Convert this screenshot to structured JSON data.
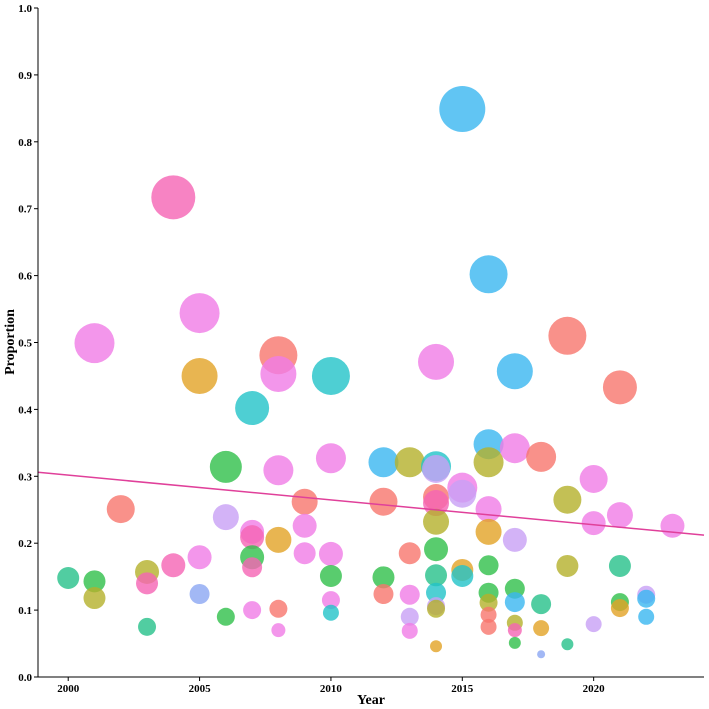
{
  "chart_data": {
    "type": "scatter",
    "x_label": "Year",
    "y_label": "Proportion",
    "xlim": [
      1998.85,
      2024.2
    ],
    "ylim": [
      0,
      1
    ],
    "xticks": [
      2000,
      2005,
      2010,
      2015,
      2020
    ],
    "yticks": [
      {
        "value": 0,
        "label": "0.0"
      },
      0.1,
      0.2,
      0.3,
      0.4,
      0.5,
      0.6,
      0.7,
      0.8,
      0.9,
      {
        "value": 1,
        "label": "1.0"
      }
    ],
    "opacity": 0.8,
    "x": [
      2000,
      2001,
      2001,
      2001,
      2002,
      2004,
      2003,
      2003,
      2003,
      2004,
      2005,
      2005,
      2005,
      2005,
      2006,
      2006,
      2006,
      2007,
      2007,
      2007,
      2007,
      2007,
      2007,
      2008,
      2008,
      2008,
      2008,
      2008,
      2008,
      2009,
      2009,
      2009,
      2010,
      2010,
      2010,
      2010,
      2010,
      2010,
      2012,
      2012,
      2012,
      2012,
      2013,
      2013,
      2013,
      2013,
      2013,
      2014,
      2014,
      2014,
      2014,
      2014,
      2014,
      2014,
      2014,
      2014,
      2014,
      2014,
      2014,
      2015,
      2015,
      2015,
      2015,
      2015,
      2016,
      2016,
      2016,
      2016,
      2016,
      2016,
      2016,
      2016,
      2016,
      2016,
      2017,
      2017,
      2017,
      2017,
      2017,
      2017,
      2017,
      2017,
      2018,
      2018,
      2018,
      2018,
      2019,
      2019,
      2019,
      2019,
      2020,
      2020,
      2020,
      2021,
      2021,
      2021,
      2021,
      2021,
      2022,
      2022,
      2022,
      2023
    ],
    "y": [
      0.148,
      0.499,
      0.143,
      0.118,
      0.251,
      0.717,
      0.157,
      0.14,
      0.075,
      0.167,
      0.544,
      0.45,
      0.179,
      0.124,
      0.314,
      0.239,
      0.09,
      0.402,
      0.217,
      0.209,
      0.179,
      0.164,
      0.1,
      0.481,
      0.453,
      0.309,
      0.205,
      0.102,
      0.07,
      0.262,
      0.226,
      0.185,
      0.45,
      0.327,
      0.184,
      0.151,
      0.115,
      0.096,
      0.262,
      0.149,
      0.124,
      0.321,
      0.321,
      0.185,
      0.123,
      0.09,
      0.069,
      0.471,
      0.315,
      0.311,
      0.269,
      0.26,
      0.232,
      0.191,
      0.152,
      0.126,
      0.106,
      0.102,
      0.046,
      0.849,
      0.283,
      0.274,
      0.16,
      0.151,
      0.602,
      0.348,
      0.321,
      0.251,
      0.217,
      0.167,
      0.126,
      0.111,
      0.093,
      0.075,
      0.457,
      0.342,
      0.205,
      0.132,
      0.112,
      0.081,
      0.07,
      0.051,
      0.329,
      0.109,
      0.073,
      0.034,
      0.51,
      0.265,
      0.166,
      0.049,
      0.296,
      0.23,
      0.079,
      0.433,
      0.242,
      0.166,
      0.112,
      0.103,
      0.123,
      0.117,
      0.09,
      0.226
    ],
    "sizes": [
      11,
      20,
      11,
      11,
      14,
      22,
      12,
      11,
      9,
      12,
      20,
      18,
      12,
      10,
      16,
      13,
      9,
      17,
      12,
      12,
      12,
      10,
      9,
      19,
      18,
      15,
      13,
      9,
      7,
      13,
      12,
      11,
      19,
      15,
      12,
      11,
      9,
      8,
      14,
      11,
      10,
      15,
      15,
      11,
      10,
      9,
      8,
      18,
      15,
      14,
      13,
      13,
      13,
      12,
      11,
      10,
      9,
      9,
      6,
      23,
      15,
      14,
      11,
      11,
      19,
      15,
      15,
      13,
      13,
      10,
      10,
      9,
      8,
      8,
      18,
      15,
      12,
      10,
      10,
      8,
      7,
      6,
      15,
      10,
      8,
      4,
      19,
      14,
      11,
      6,
      14,
      12,
      8,
      17,
      13,
      11,
      9,
      9,
      9,
      9,
      8,
      12
    ],
    "colors": [
      "#25c08a",
      "#f07ce6",
      "#2fbf4a",
      "#b4b02a",
      "#f8766d",
      "#f564b4",
      "#b4b02a",
      "#f564b4",
      "#25c08a",
      "#f564b4",
      "#f07ce6",
      "#e2a325",
      "#f07ce6",
      "#8ba6f2",
      "#2fbf4a",
      "#c8a0f5",
      "#2fbf4a",
      "#22c3c8",
      "#f07ce6",
      "#f564b4",
      "#2fbf4a",
      "#f564b4",
      "#f07ce6",
      "#f8766d",
      "#f07ce6",
      "#f07ce6",
      "#e2a325",
      "#f8766d",
      "#f07ce6",
      "#f8766d",
      "#f07ce6",
      "#f07ce6",
      "#22c3c8",
      "#f07ce6",
      "#f07ce6",
      "#2fbf4a",
      "#f07ce6",
      "#22c3c8",
      "#f8766d",
      "#2fbf4a",
      "#f8766d",
      "#3ab6f0",
      "#b4b02a",
      "#f8766d",
      "#f07ce6",
      "#c8a0f5",
      "#f07ce6",
      "#f07ce6",
      "#22c3c8",
      "#c8a0f5",
      "#f8766d",
      "#f564b4",
      "#b4b02a",
      "#2fbf4a",
      "#25c08a",
      "#22c3c8",
      "#c8a0f5",
      "#b4b02a",
      "#e2a325",
      "#3ab6f0",
      "#f07ce6",
      "#c8a0f5",
      "#e2a325",
      "#22c3c8",
      "#3ab6f0",
      "#3ab6f0",
      "#b4b02a",
      "#f07ce6",
      "#e2a325",
      "#2fbf4a",
      "#2fbf4a",
      "#b4b02a",
      "#f8766d",
      "#f8766d",
      "#3ab6f0",
      "#f07ce6",
      "#c8a0f5",
      "#2fbf4a",
      "#3ab6f0",
      "#b4b02a",
      "#f564b4",
      "#2fbf4a",
      "#f8766d",
      "#25c08a",
      "#e2a325",
      "#8ba6f2",
      "#f8766d",
      "#b4b02a",
      "#b4b02a",
      "#25c08a",
      "#f07ce6",
      "#f07ce6",
      "#c8a0f5",
      "#f8766d",
      "#f07ce6",
      "#25c08a",
      "#2fbf4a",
      "#e2a325",
      "#c8a0f5",
      "#3ab6f0",
      "#3ab6f0",
      "#f07ce6"
    ],
    "trend": {
      "x": [
        1998.85,
        2024.2
      ],
      "y": [
        0.306,
        0.212
      ],
      "color": "#e0409a"
    }
  }
}
